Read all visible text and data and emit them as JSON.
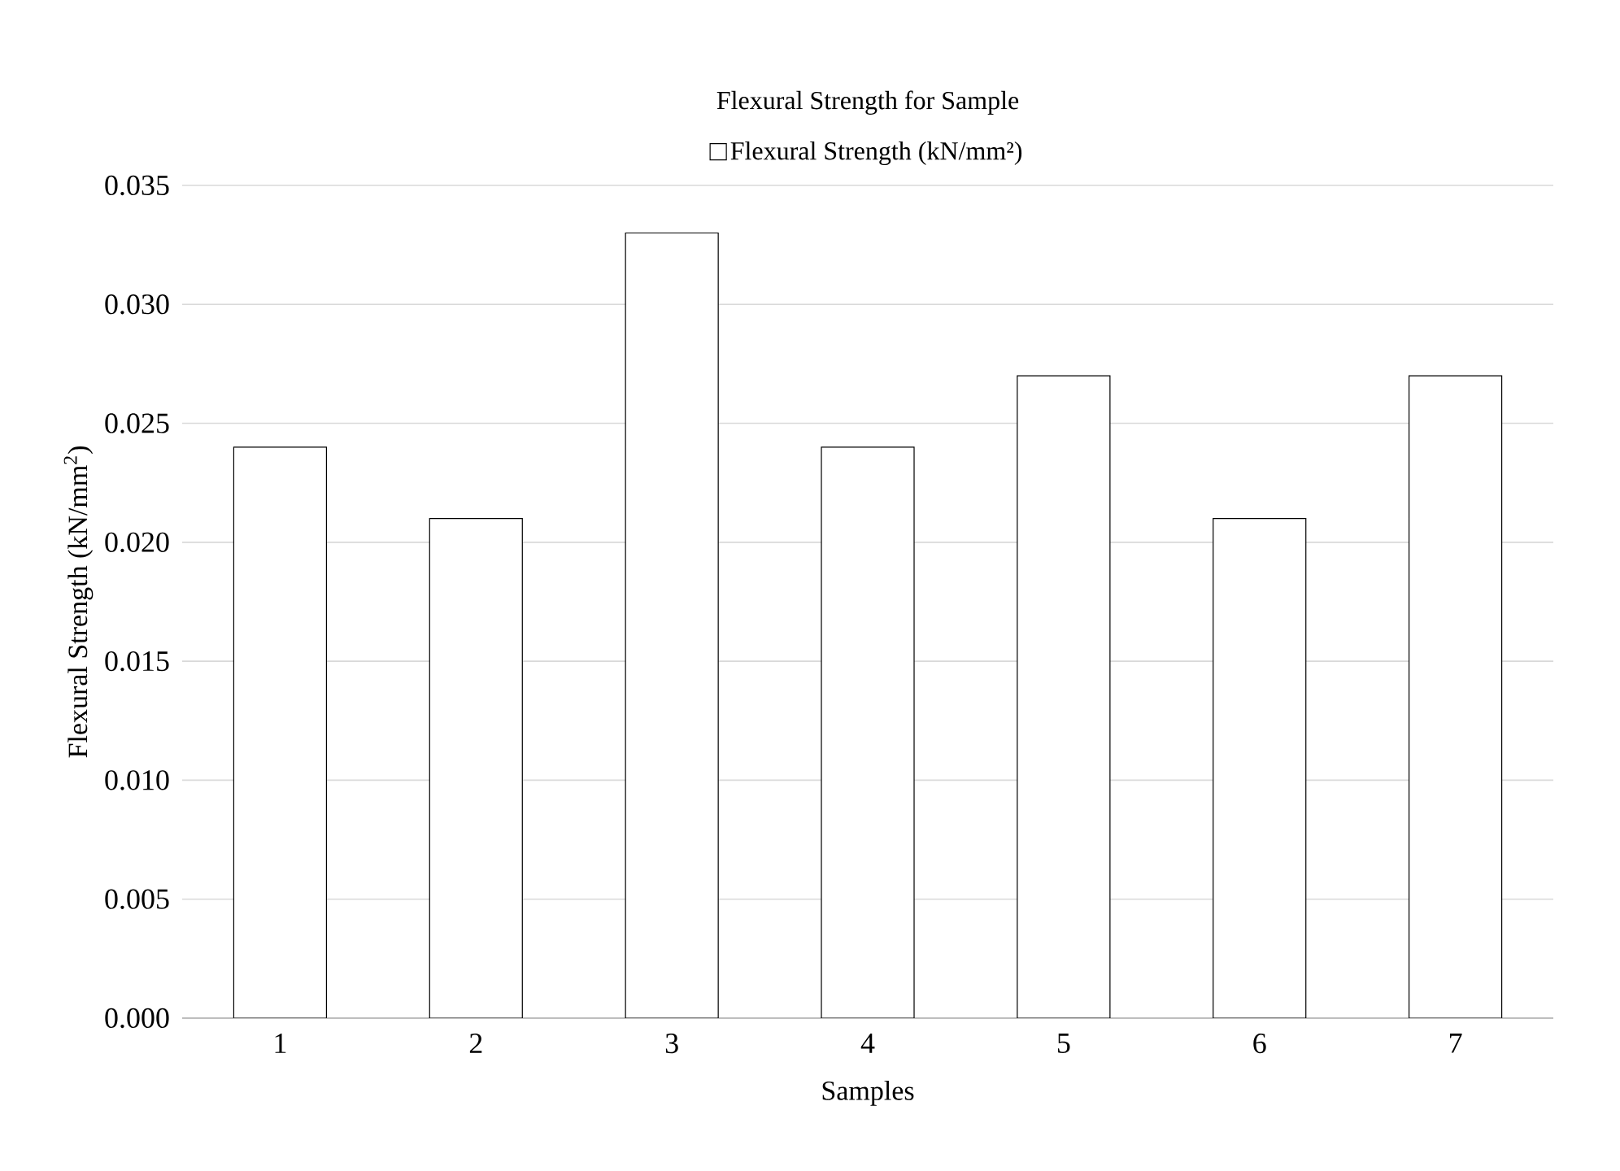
{
  "chart_data": {
    "type": "bar",
    "title": "Flexural Strength for Sample",
    "xlabel": "Samples",
    "ylabel": "Flexural Strength (kN/mm$^{2}$)",
    "categories": [
      "1",
      "2",
      "3",
      "4",
      "5",
      "6",
      "7"
    ],
    "series": [
      {
        "name": "Flexural Strength (kN/mm²)",
        "color": "#ffffff",
        "values": [
          0.024,
          0.021,
          0.033,
          0.024,
          0.027,
          0.021,
          0.027
        ]
      }
    ],
    "ylim": [
      0,
      0.035
    ],
    "yticks": [
      {
        "value": 0,
        "label": "0.000"
      },
      {
        "value": 0.005,
        "label": "0.005"
      },
      {
        "value": 0.01,
        "label": "0.010"
      },
      {
        "value": 0.015,
        "label": "0.015"
      },
      {
        "value": 0.02,
        "label": "0.020"
      },
      {
        "value": 0.025,
        "label": "0.025"
      },
      {
        "value": 0.03,
        "label": "0.030"
      },
      {
        "value": 0.035,
        "label": "0.035"
      }
    ],
    "grid": "y",
    "legend": "top"
  }
}
